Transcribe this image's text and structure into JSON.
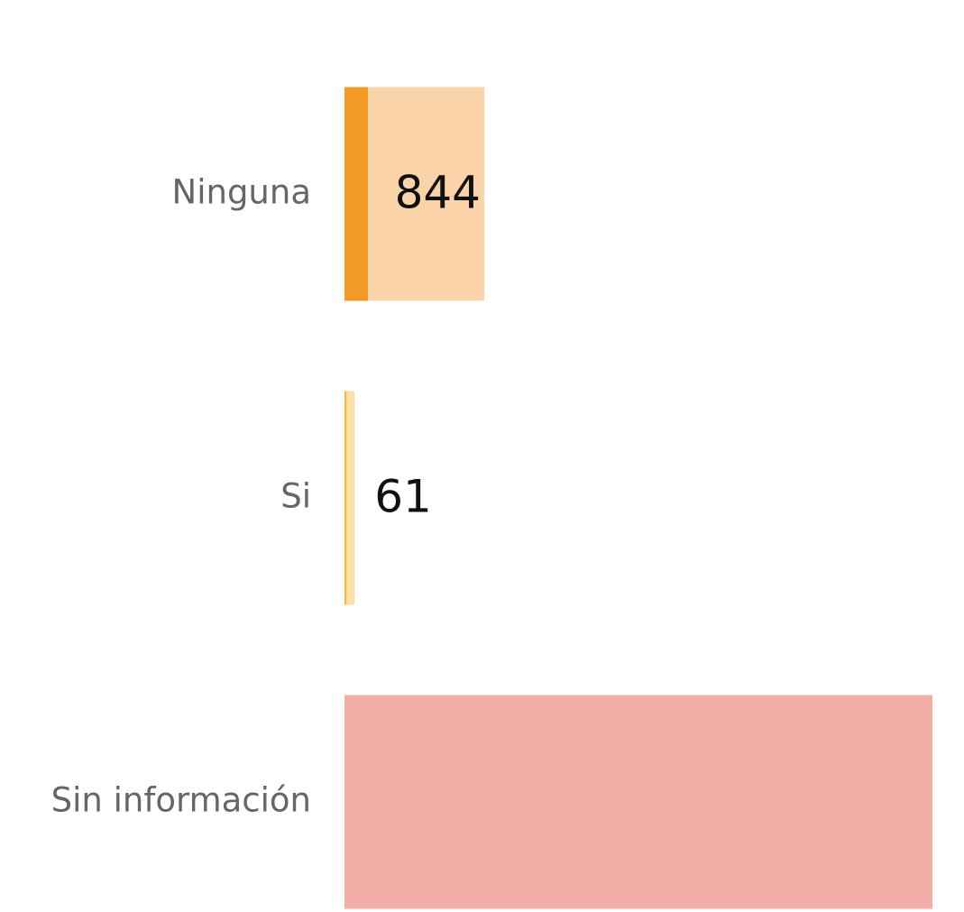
{
  "chart_data": {
    "type": "barh",
    "categories": [
      "Ninguna",
      "Si",
      "Sin información"
    ],
    "values": [
      844,
      61,
      3550
    ],
    "value_labels": [
      "844",
      "61",
      null
    ],
    "colors": [
      "#fad4a8",
      "#fde0a6",
      "#f2afa8"
    ],
    "accent_colors": [
      "#f29a26",
      "#f5b942",
      null
    ],
    "xlim": [
      0,
      3550
    ]
  }
}
